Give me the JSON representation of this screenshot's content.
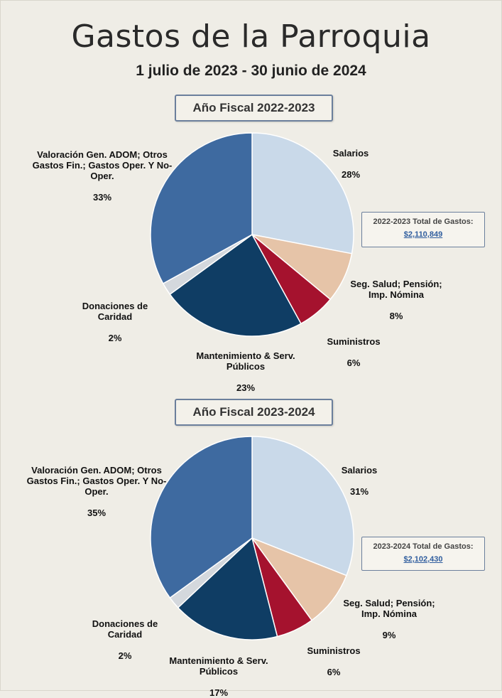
{
  "header": {
    "title": "Gastos de la Parroquia",
    "subtitle": "1 julio de 2023 - 30 junio de 2024"
  },
  "colors": {
    "Salarios": "#c9d9e9",
    "Seg. Salud; Pensión; Imp. Nómina": "#e6c4a8",
    "Suministros": "#a5122e",
    "Mantenimiento & Serv. Públicos": "#0f3d64",
    "Donaciones de Caridad": "#d4d8dd",
    "Valoración Gen. ADOM; Otros Gastos Fin.; Gastos Oper. Y No-Oper.": "#3e6aa0"
  },
  "chart_data": [
    {
      "type": "pie",
      "title": "Año Fiscal 2022-2023",
      "total_label": "2022-2023  Total de Gastos:",
      "total_value": "$2,110,849",
      "slices": [
        {
          "label": "Salarios",
          "pct": "28%",
          "value": 28
        },
        {
          "label": "Seg. Salud; Pensión; Imp. Nómina",
          "pct": "8%",
          "value": 8
        },
        {
          "label": "Suministros",
          "pct": "6%",
          "value": 6
        },
        {
          "label": "Mantenimiento & Serv. Públicos",
          "pct": "23%",
          "value": 23
        },
        {
          "label": "Donaciones de Caridad",
          "pct": "2%",
          "value": 2
        },
        {
          "label": "Valoración Gen. ADOM; Otros Gastos Fin.; Gastos Oper. Y No-Oper.",
          "pct": "33%",
          "value": 33
        }
      ]
    },
    {
      "type": "pie",
      "title": "Año Fiscal 2023-2024",
      "total_label": "2023-2024  Total de Gastos:",
      "total_value": "$2,102,430",
      "slices": [
        {
          "label": "Salarios",
          "pct": "31%",
          "value": 31
        },
        {
          "label": "Seg. Salud; Pensión; Imp. Nómina",
          "pct": "9%",
          "value": 9
        },
        {
          "label": "Suministros",
          "pct": "6%",
          "value": 6
        },
        {
          "label": "Mantenimiento & Serv. Públicos",
          "pct": "17%",
          "value": 17
        },
        {
          "label": "Donaciones de Caridad",
          "pct": "2%",
          "value": 2
        },
        {
          "label": "Valoración Gen. ADOM; Otros Gastos Fin.; Gastos Oper. Y No-Oper.",
          "pct": "35%",
          "value": 35
        }
      ]
    }
  ]
}
